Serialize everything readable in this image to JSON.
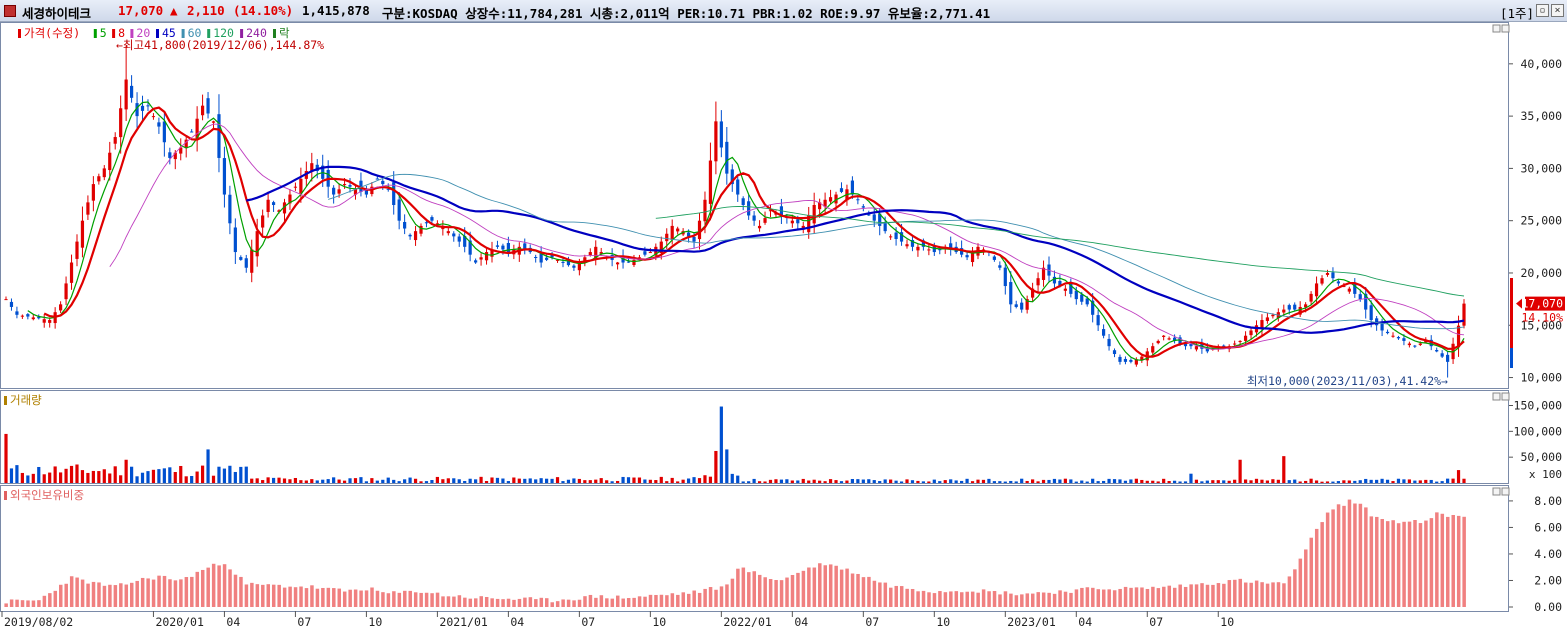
{
  "header": {
    "name": "세경하이테크",
    "price": "17,070",
    "change_arrow": "▲",
    "change": "2,110",
    "change_pct": "(14.10%)",
    "volume": "1,415,878",
    "info": "구분:KOSDAQ 상장수:11,784,281 시총:2,011억 PER:10.71 PBR:1.02 ROE:9.97 유보율:2,771.41",
    "period": "[1주]",
    "colors": {
      "up": "#e00000",
      "down": "#0050d0",
      "text": "#000000"
    }
  },
  "legend": {
    "price": [
      "가격(수정)",
      "5",
      "8",
      "20",
      "45",
      "60",
      "120",
      "240",
      "락"
    ],
    "volume": "거래량",
    "foreign": "외국인보유비중",
    "colors": [
      "#e00000",
      "#00a000",
      "#e00000",
      "#c040c0",
      "#0000c0",
      "#4090b0",
      "#20a060",
      "#9020a0",
      "#208020"
    ]
  },
  "annotations": {
    "high": "←최고41,800(2019/12/06),144.87%",
    "low": "최저10,000(2023/11/03),41.42%→",
    "last_price": "17,070",
    "last_pct": "14.10%"
  },
  "chart_data": [
    {
      "type": "candlestick",
      "title": "가격(수정)",
      "x_ticks": [
        "2019/08/02",
        "2020/01",
        "04",
        "07",
        "10",
        "2021/01",
        "04",
        "07",
        "10",
        "2022/01",
        "04",
        "07",
        "10",
        "2023/01",
        "04",
        "07",
        "10"
      ],
      "y_ticks": [
        "40,000",
        "35,000",
        "30,000",
        "25,000",
        "20,000",
        "15,000",
        "10,000"
      ],
      "ylim": [
        9000,
        44000
      ],
      "close_keypoints": [
        [
          0,
          17500
        ],
        [
          2,
          16000
        ],
        [
          8,
          15500
        ],
        [
          10,
          17000
        ],
        [
          12,
          21000
        ],
        [
          14,
          25000
        ],
        [
          16,
          28500
        ],
        [
          18,
          30000
        ],
        [
          20,
          33000
        ],
        [
          22,
          38500
        ],
        [
          24,
          35000
        ],
        [
          26,
          36000
        ],
        [
          28,
          34000
        ],
        [
          30,
          31000
        ],
        [
          32,
          32000
        ],
        [
          34,
          33500
        ],
        [
          36,
          36000
        ],
        [
          38,
          34500
        ],
        [
          40,
          27500
        ],
        [
          42,
          22000
        ],
        [
          44,
          20500
        ],
        [
          46,
          24000
        ],
        [
          48,
          27000
        ],
        [
          50,
          26000
        ],
        [
          52,
          27500
        ],
        [
          54,
          29000
        ],
        [
          56,
          30500
        ],
        [
          58,
          29000
        ],
        [
          60,
          27500
        ],
        [
          62,
          28500
        ],
        [
          64,
          28000
        ],
        [
          66,
          27500
        ],
        [
          68,
          29000
        ],
        [
          70,
          28000
        ],
        [
          72,
          25000
        ],
        [
          74,
          23500
        ],
        [
          76,
          24500
        ],
        [
          78,
          25000
        ],
        [
          80,
          24500
        ],
        [
          82,
          23500
        ],
        [
          84,
          22500
        ],
        [
          86,
          21000
        ],
        [
          88,
          22000
        ],
        [
          90,
          22500
        ],
        [
          92,
          22000
        ],
        [
          94,
          22500
        ],
        [
          96,
          22000
        ],
        [
          98,
          21000
        ],
        [
          100,
          21500
        ],
        [
          102,
          21000
        ],
        [
          104,
          20500
        ],
        [
          106,
          21500
        ],
        [
          108,
          22500
        ],
        [
          110,
          21500
        ],
        [
          112,
          21000
        ],
        [
          114,
          21000
        ],
        [
          116,
          21500
        ],
        [
          118,
          22000
        ],
        [
          120,
          23000
        ],
        [
          122,
          24500
        ],
        [
          124,
          24000
        ],
        [
          126,
          23000
        ],
        [
          128,
          27000
        ],
        [
          130,
          34500
        ],
        [
          132,
          29500
        ],
        [
          134,
          27500
        ],
        [
          136,
          25500
        ],
        [
          138,
          24500
        ],
        [
          140,
          26000
        ],
        [
          142,
          25500
        ],
        [
          144,
          25000
        ],
        [
          146,
          24500
        ],
        [
          148,
          26500
        ],
        [
          150,
          27000
        ],
        [
          152,
          27500
        ],
        [
          154,
          28000
        ],
        [
          156,
          27000
        ],
        [
          158,
          25500
        ],
        [
          160,
          24500
        ],
        [
          162,
          23500
        ],
        [
          164,
          23000
        ],
        [
          166,
          22500
        ],
        [
          168,
          22500
        ],
        [
          170,
          22000
        ],
        [
          172,
          22500
        ],
        [
          174,
          22000
        ],
        [
          176,
          21500
        ],
        [
          178,
          22500
        ],
        [
          180,
          22000
        ],
        [
          182,
          20500
        ],
        [
          184,
          17000
        ],
        [
          186,
          16500
        ],
        [
          188,
          18500
        ],
        [
          190,
          20500
        ],
        [
          192,
          19000
        ],
        [
          194,
          18500
        ],
        [
          196,
          17500
        ],
        [
          198,
          17000
        ],
        [
          200,
          15000
        ],
        [
          202,
          13000
        ],
        [
          204,
          11500
        ],
        [
          206,
          11500
        ],
        [
          208,
          12000
        ],
        [
          210,
          13000
        ],
        [
          212,
          14000
        ],
        [
          214,
          13500
        ],
        [
          216,
          13000
        ],
        [
          218,
          13000
        ],
        [
          220,
          12500
        ],
        [
          222,
          13000
        ],
        [
          224,
          13000
        ],
        [
          226,
          13500
        ],
        [
          228,
          14500
        ],
        [
          230,
          15500
        ],
        [
          232,
          16000
        ],
        [
          234,
          16500
        ],
        [
          236,
          16500
        ],
        [
          238,
          17000
        ],
        [
          240,
          19000
        ],
        [
          242,
          20000
        ],
        [
          244,
          19000
        ],
        [
          246,
          18500
        ],
        [
          248,
          17500
        ],
        [
          250,
          15500
        ],
        [
          252,
          14500
        ],
        [
          254,
          14000
        ],
        [
          256,
          13500
        ],
        [
          258,
          13000
        ],
        [
          260,
          13500
        ],
        [
          262,
          12500
        ],
        [
          264,
          11500
        ],
        [
          266,
          14960
        ],
        [
          267,
          17070
        ]
      ],
      "last": 17070,
      "high": 41800,
      "low": 10000
    },
    {
      "type": "bar",
      "title": "거래량",
      "y_ticks": [
        "150,000",
        "100,000",
        "50,000"
      ],
      "unit": "x 100",
      "ylim": [
        0,
        180000
      ],
      "spikes": [
        [
          0,
          95000
        ],
        [
          22,
          45000
        ],
        [
          37,
          65000
        ],
        [
          131,
          148000
        ],
        [
          130,
          62000
        ],
        [
          132,
          65000
        ],
        [
          217,
          18000
        ],
        [
          226,
          45000
        ],
        [
          234,
          52000
        ],
        [
          266,
          25000
        ]
      ]
    },
    {
      "type": "bar",
      "title": "외국인보유비중",
      "y_ticks": [
        "8.00",
        "6.00",
        "4.00",
        "2.00",
        "0.00"
      ],
      "ylim": [
        0,
        9.2
      ],
      "keypoints": [
        [
          0,
          0.4
        ],
        [
          6,
          0.5
        ],
        [
          12,
          2.2
        ],
        [
          16,
          1.8
        ],
        [
          20,
          1.5
        ],
        [
          24,
          2.0
        ],
        [
          28,
          2.3
        ],
        [
          32,
          2.0
        ],
        [
          36,
          2.8
        ],
        [
          40,
          3.4
        ],
        [
          44,
          1.7
        ],
        [
          50,
          1.6
        ],
        [
          56,
          1.5
        ],
        [
          62,
          1.2
        ],
        [
          66,
          1.4
        ],
        [
          70,
          1.0
        ],
        [
          76,
          1.2
        ],
        [
          80,
          0.9
        ],
        [
          86,
          0.7
        ],
        [
          94,
          0.6
        ],
        [
          100,
          0.5
        ],
        [
          108,
          0.8
        ],
        [
          114,
          0.7
        ],
        [
          120,
          0.9
        ],
        [
          126,
          1.1
        ],
        [
          132,
          1.6
        ],
        [
          134,
          3.0
        ],
        [
          138,
          2.4
        ],
        [
          142,
          2.0
        ],
        [
          146,
          2.8
        ],
        [
          150,
          3.3
        ],
        [
          154,
          2.8
        ],
        [
          158,
          2.2
        ],
        [
          162,
          1.6
        ],
        [
          166,
          1.4
        ],
        [
          170,
          1.2
        ],
        [
          176,
          1.3
        ],
        [
          182,
          1.1
        ],
        [
          186,
          1.0
        ],
        [
          194,
          1.2
        ],
        [
          200,
          1.4
        ],
        [
          208,
          1.4
        ],
        [
          216,
          1.6
        ],
        [
          220,
          1.8
        ],
        [
          226,
          2.0
        ],
        [
          230,
          1.8
        ],
        [
          234,
          1.8
        ],
        [
          236,
          2.8
        ],
        [
          238,
          4.2
        ],
        [
          240,
          6.0
        ],
        [
          242,
          7.0
        ],
        [
          244,
          7.6
        ],
        [
          246,
          8.0
        ],
        [
          248,
          7.7
        ],
        [
          250,
          7.0
        ],
        [
          252,
          6.6
        ],
        [
          256,
          6.4
        ],
        [
          260,
          6.4
        ],
        [
          262,
          7.0
        ],
        [
          264,
          6.9
        ],
        [
          266,
          6.8
        ]
      ]
    }
  ]
}
